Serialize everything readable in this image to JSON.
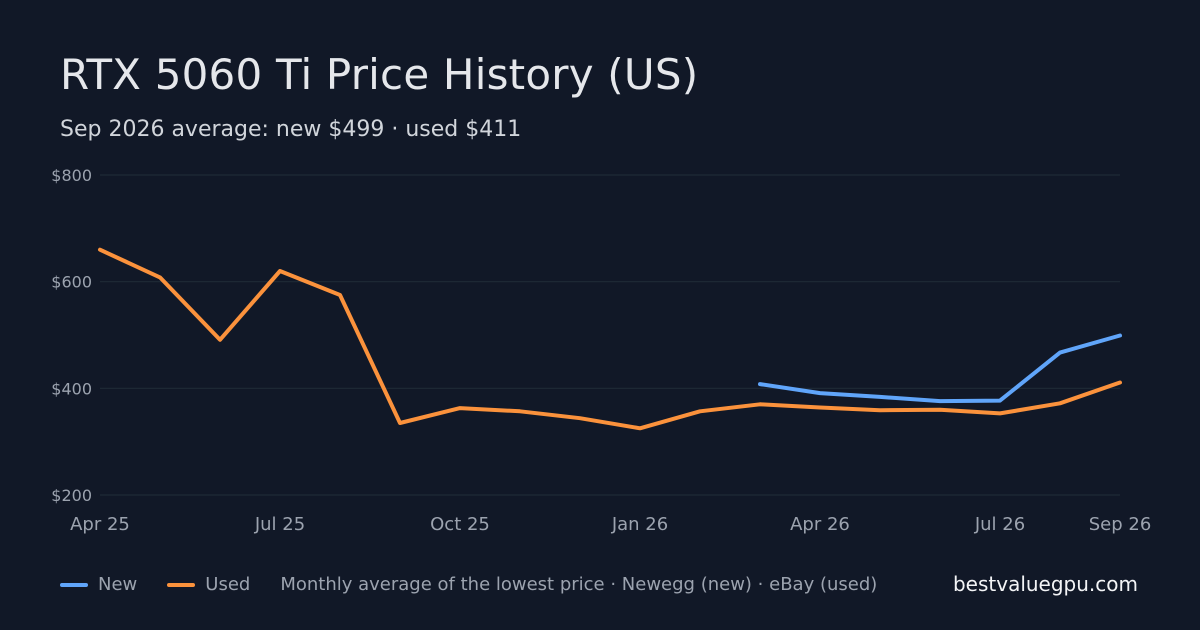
{
  "header": {
    "title": "RTX 5060 Ti Price History (US)",
    "subtitle": "Sep 2026 average: new $499 · used $411"
  },
  "legend": {
    "new_label": "New",
    "used_label": "Used",
    "note": "Monthly average of the lowest price · Newegg (new) · eBay (used)"
  },
  "footer": {
    "site": "bestvaluegpu.com"
  },
  "colors": {
    "background": "#111827",
    "new": "#60a5fa",
    "used": "#fb923c",
    "grid": "#1f2a37",
    "axis_text": "#9ca3af"
  },
  "chart_data": {
    "type": "line",
    "title": "RTX 5060 Ti Price History (US)",
    "subtitle": "Sep 2026 average: new $499 · used $411",
    "x": [
      "Apr 25",
      "May 25",
      "Jun 25",
      "Jul 25",
      "Aug 25",
      "Sep 25",
      "Oct 25",
      "Nov 25",
      "Dec 25",
      "Jan 26",
      "Feb 26",
      "Mar 26",
      "Apr 26",
      "May 26",
      "Jun 26",
      "Jul 26",
      "Aug 26",
      "Sep 26"
    ],
    "x_tick_labels": [
      "Apr 25",
      "Jul 25",
      "Oct 25",
      "Jan 26",
      "Apr 26",
      "Jul 26",
      "Sep 26"
    ],
    "y_tick_labels": [
      "$800",
      "$600",
      "$400",
      "$200"
    ],
    "y_ticks": [
      800,
      600,
      400,
      200
    ],
    "ylim": [
      200,
      800
    ],
    "grid": true,
    "legend_position": "bottom-left",
    "series": [
      {
        "name": "New",
        "color": "#60a5fa",
        "values": [
          null,
          null,
          null,
          null,
          null,
          null,
          null,
          null,
          null,
          null,
          null,
          408,
          391,
          384,
          376,
          377,
          467,
          499
        ]
      },
      {
        "name": "Used",
        "color": "#fb923c",
        "values": [
          660,
          608,
          491,
          620,
          575,
          335,
          363,
          357,
          344,
          325,
          357,
          370,
          364,
          359,
          360,
          353,
          372,
          411
        ]
      }
    ]
  }
}
